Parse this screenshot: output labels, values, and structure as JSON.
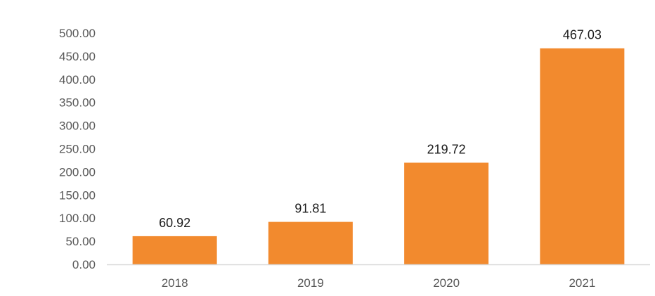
{
  "chart_data": {
    "type": "bar",
    "title": "",
    "xlabel": "",
    "ylabel": "",
    "categories": [
      "2018",
      "2019",
      "2020",
      "2021"
    ],
    "values": [
      60.92,
      91.81,
      219.72,
      467.03
    ],
    "value_labels": [
      "60.92",
      "91.81",
      "219.72",
      "467.03"
    ],
    "ylim": [
      0,
      500
    ],
    "y_ticks": [
      0,
      50,
      100,
      150,
      200,
      250,
      300,
      350,
      400,
      450,
      500
    ],
    "y_tick_labels": [
      "0.00",
      "50.00",
      "100.00",
      "150.00",
      "200.00",
      "250.00",
      "300.00",
      "350.00",
      "400.00",
      "450.00",
      "500.00"
    ],
    "grid": false,
    "legend": "none",
    "bar_color": "#F28A2E",
    "axis_color": "#D9D9D9",
    "text_color": "#595959",
    "label_color": "#1A1A1A"
  }
}
